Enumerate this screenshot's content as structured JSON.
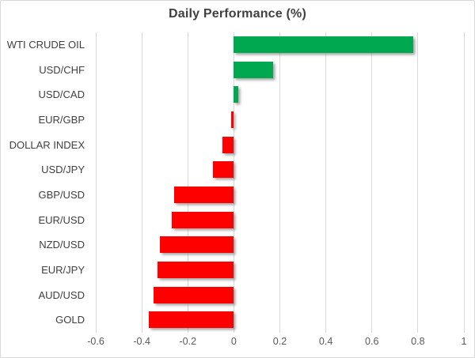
{
  "chart_data": {
    "type": "bar",
    "orientation": "horizontal",
    "title": "Daily Performance (%)",
    "categories": [
      "WTI CRUDE OIL",
      "USD/CHF",
      "USD/CAD",
      "EUR/GBP",
      "DOLLAR INDEX",
      "USD/JPY",
      "GBP/USD",
      "EUR/USD",
      "NZD/USD",
      "EUR/JPY",
      "AUD/USD",
      "GOLD"
    ],
    "values": [
      0.78,
      0.17,
      0.02,
      -0.01,
      -0.05,
      -0.09,
      -0.26,
      -0.27,
      -0.32,
      -0.33,
      -0.35,
      -0.37
    ],
    "xlim": [
      -0.6,
      1.0
    ],
    "xticks": [
      -0.6,
      -0.4,
      -0.2,
      0,
      0.2,
      0.4,
      0.6,
      0.8,
      1
    ],
    "xtick_labels": [
      "-0.6",
      "-0.4",
      "-0.2",
      "0",
      "0.2",
      "0.4",
      "0.6",
      "0.8",
      "1"
    ],
    "grid": true,
    "legend": false,
    "colors": {
      "positive_bar": "#00A950",
      "negative_bar": "#FF0000",
      "gridline": "#D9D9D9",
      "title_text": "#404040",
      "category_text": "#404040",
      "tick_text": "#595959",
      "frame_border": "#D9D9D9",
      "background": "#FFFFFF"
    }
  }
}
